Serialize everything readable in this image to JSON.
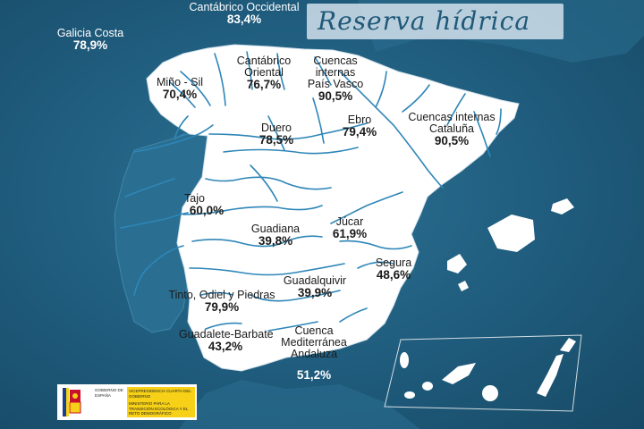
{
  "title": "Reserva hídrica",
  "colors": {
    "sea": "#1f5878",
    "land": "#ffffff",
    "rivers": "#2e86b8",
    "title_box": "#d2e1eb",
    "title_text": "#1f5878"
  },
  "basins": [
    {
      "id": "galicia-costa",
      "name": "Galicia Costa",
      "value": "78,9%"
    },
    {
      "id": "cantabrico-occidental",
      "name": "Cantábrico Occidental",
      "value": "83,4%"
    },
    {
      "id": "mino-sil",
      "name": "Miño - Sil",
      "value": "70,4%"
    },
    {
      "id": "cantabrico-oriental",
      "name": "Cantábrico\nOriental",
      "value": "76,7%"
    },
    {
      "id": "cuencas-internas-pais-vasco",
      "name": "Cuencas\ninternas\nPaís Vasco",
      "value": "90,5%"
    },
    {
      "id": "ebro",
      "name": "Ebro",
      "value": "79,4%"
    },
    {
      "id": "cuencas-internas-cataluna",
      "name": "Cuencas internas\nCataluña",
      "value": "90,5%"
    },
    {
      "id": "duero",
      "name": "Duero",
      "value": "78,5%"
    },
    {
      "id": "tajo",
      "name": "Tajo",
      "value": "60,0%"
    },
    {
      "id": "guadiana",
      "name": "Guadiana",
      "value": "39,8%"
    },
    {
      "id": "jucar",
      "name": "Júcar",
      "value": "61,9%"
    },
    {
      "id": "segura",
      "name": "Segura",
      "value": "48,6%"
    },
    {
      "id": "guadalquivir",
      "name": "Guadalquivir",
      "value": "39,9%"
    },
    {
      "id": "tinto-odiel-piedras",
      "name": "Tinto, Odiel y Piedras",
      "value": "79,9%"
    },
    {
      "id": "guadalete-barbate",
      "name": "Guadalete-Barbate",
      "value": "43,2%"
    },
    {
      "id": "cuenca-mediterranea-andaluza",
      "name": "Cuenca\nMediterránea\nAndaluza",
      "value": "51,2%"
    }
  ],
  "logo": {
    "shield_text": "GOBIERNO DE ESPAÑA",
    "line1": "VICEPRESIDENCIA CUARTA DEL GOBIERNO",
    "line2": "MINISTERIO PARA LA TRANSICIÓN ECOLÓGICA Y EL RETO DEMOGRÁFICO"
  }
}
